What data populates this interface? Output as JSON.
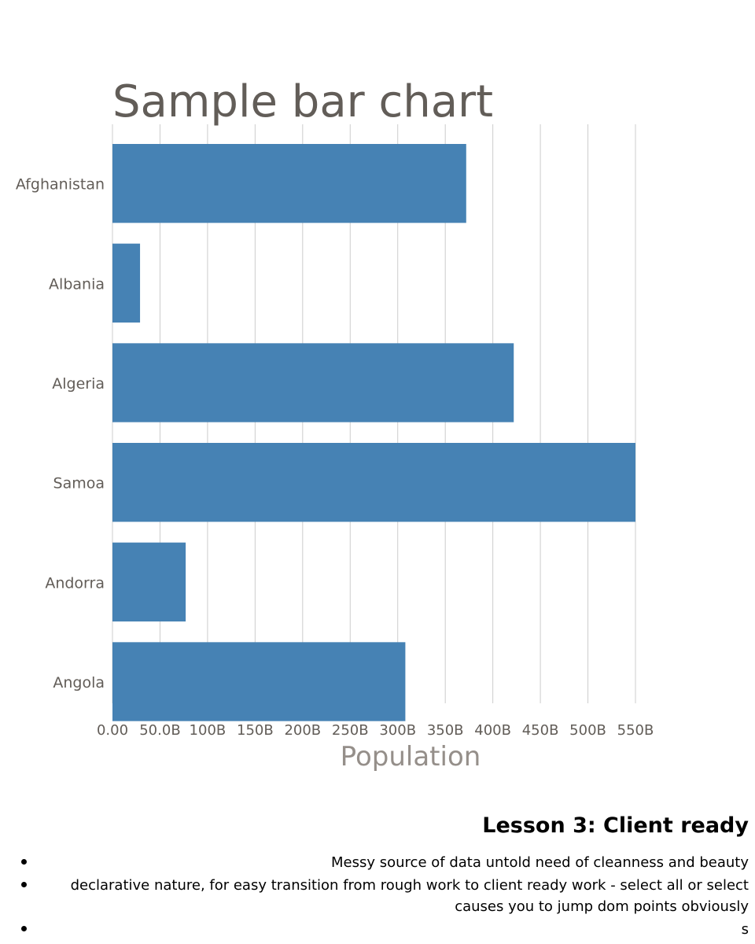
{
  "chart_data": {
    "type": "bar",
    "orientation": "horizontal",
    "title": "Sample bar chart",
    "xlabel": "Population",
    "ylabel": "",
    "categories": [
      "Afghanistan",
      "Albania",
      "Algeria",
      "Samoa",
      "Andorra",
      "Angola"
    ],
    "values": [
      372,
      29,
      422,
      550,
      77,
      308
    ],
    "value_unit": "B",
    "xlim": [
      0,
      550
    ],
    "xticks": [
      0,
      50,
      100,
      150,
      200,
      250,
      300,
      350,
      400,
      450,
      500,
      550
    ],
    "xtick_labels": [
      "0.00",
      "50.0B",
      "100B",
      "150B",
      "200B",
      "250B",
      "300B",
      "350B",
      "400B",
      "450B",
      "500B",
      "550B"
    ],
    "grid": "vertical",
    "legend": "none",
    "bar_color": "#4682b4"
  },
  "lesson": {
    "heading": "Lesson 3: Client ready",
    "items": [
      "Messy source of data untold need of cleanness and beauty",
      "declarative nature, for easy transition from rough work to client ready work - select all or select causes you to jump dom points obviously",
      "s"
    ]
  }
}
